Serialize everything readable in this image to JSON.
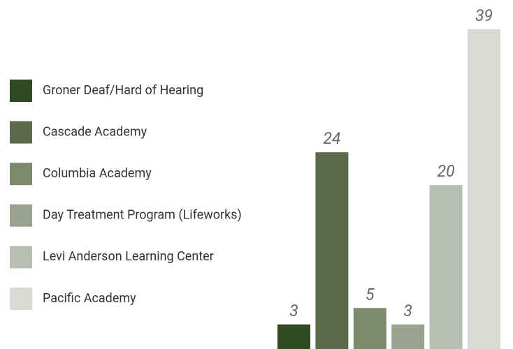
{
  "chart_data": {
    "type": "bar",
    "categories": [
      "Groner Deaf/Hard of Hearing",
      "Cascade Academy",
      "Columbia Academy",
      "Day Treatment Program (Lifeworks)",
      "Levi Anderson Learning Center",
      "Pacific Academy"
    ],
    "values": [
      3,
      24,
      5,
      3,
      20,
      39
    ],
    "colors": [
      "#2f4a22",
      "#5c6b4b",
      "#7b8a6c",
      "#9ba290",
      "#b9beb2",
      "#d8dbd4"
    ],
    "legend": "left"
  }
}
